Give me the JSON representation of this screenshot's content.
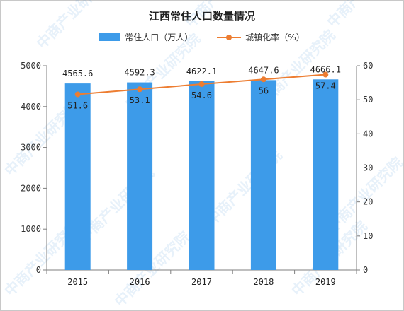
{
  "chart_data": {
    "type": "bar",
    "title": "江西常住人口数量情况",
    "categories": [
      "2015",
      "2016",
      "2017",
      "2018",
      "2019"
    ],
    "series": [
      {
        "name": "常住人口（万人）",
        "type": "bar",
        "axis": "left",
        "values": [
          4565.6,
          4592.3,
          4622.1,
          4647.6,
          4666.1
        ],
        "labels": [
          "4565.6",
          "4592.3",
          "4622.1",
          "4647.6",
          "4666.1"
        ],
        "color": "#3d9be9"
      },
      {
        "name": "城镇化率（%）",
        "type": "line",
        "axis": "right",
        "values": [
          51.6,
          53.1,
          54.6,
          56,
          57.4
        ],
        "labels": [
          "51.6",
          "53.1",
          "54.6",
          "56",
          "57.4"
        ],
        "color": "#ed7d31"
      }
    ],
    "y_left": {
      "min": 0,
      "max": 5000,
      "ticks": [
        "0",
        "1000",
        "2000",
        "3000",
        "4000",
        "5000"
      ]
    },
    "y_right": {
      "min": 0,
      "max": 60,
      "ticks": [
        "0",
        "10",
        "20",
        "30",
        "40",
        "50",
        "60"
      ]
    },
    "grid": false,
    "legend_position": "top"
  },
  "watermark": "中商产业研究院"
}
